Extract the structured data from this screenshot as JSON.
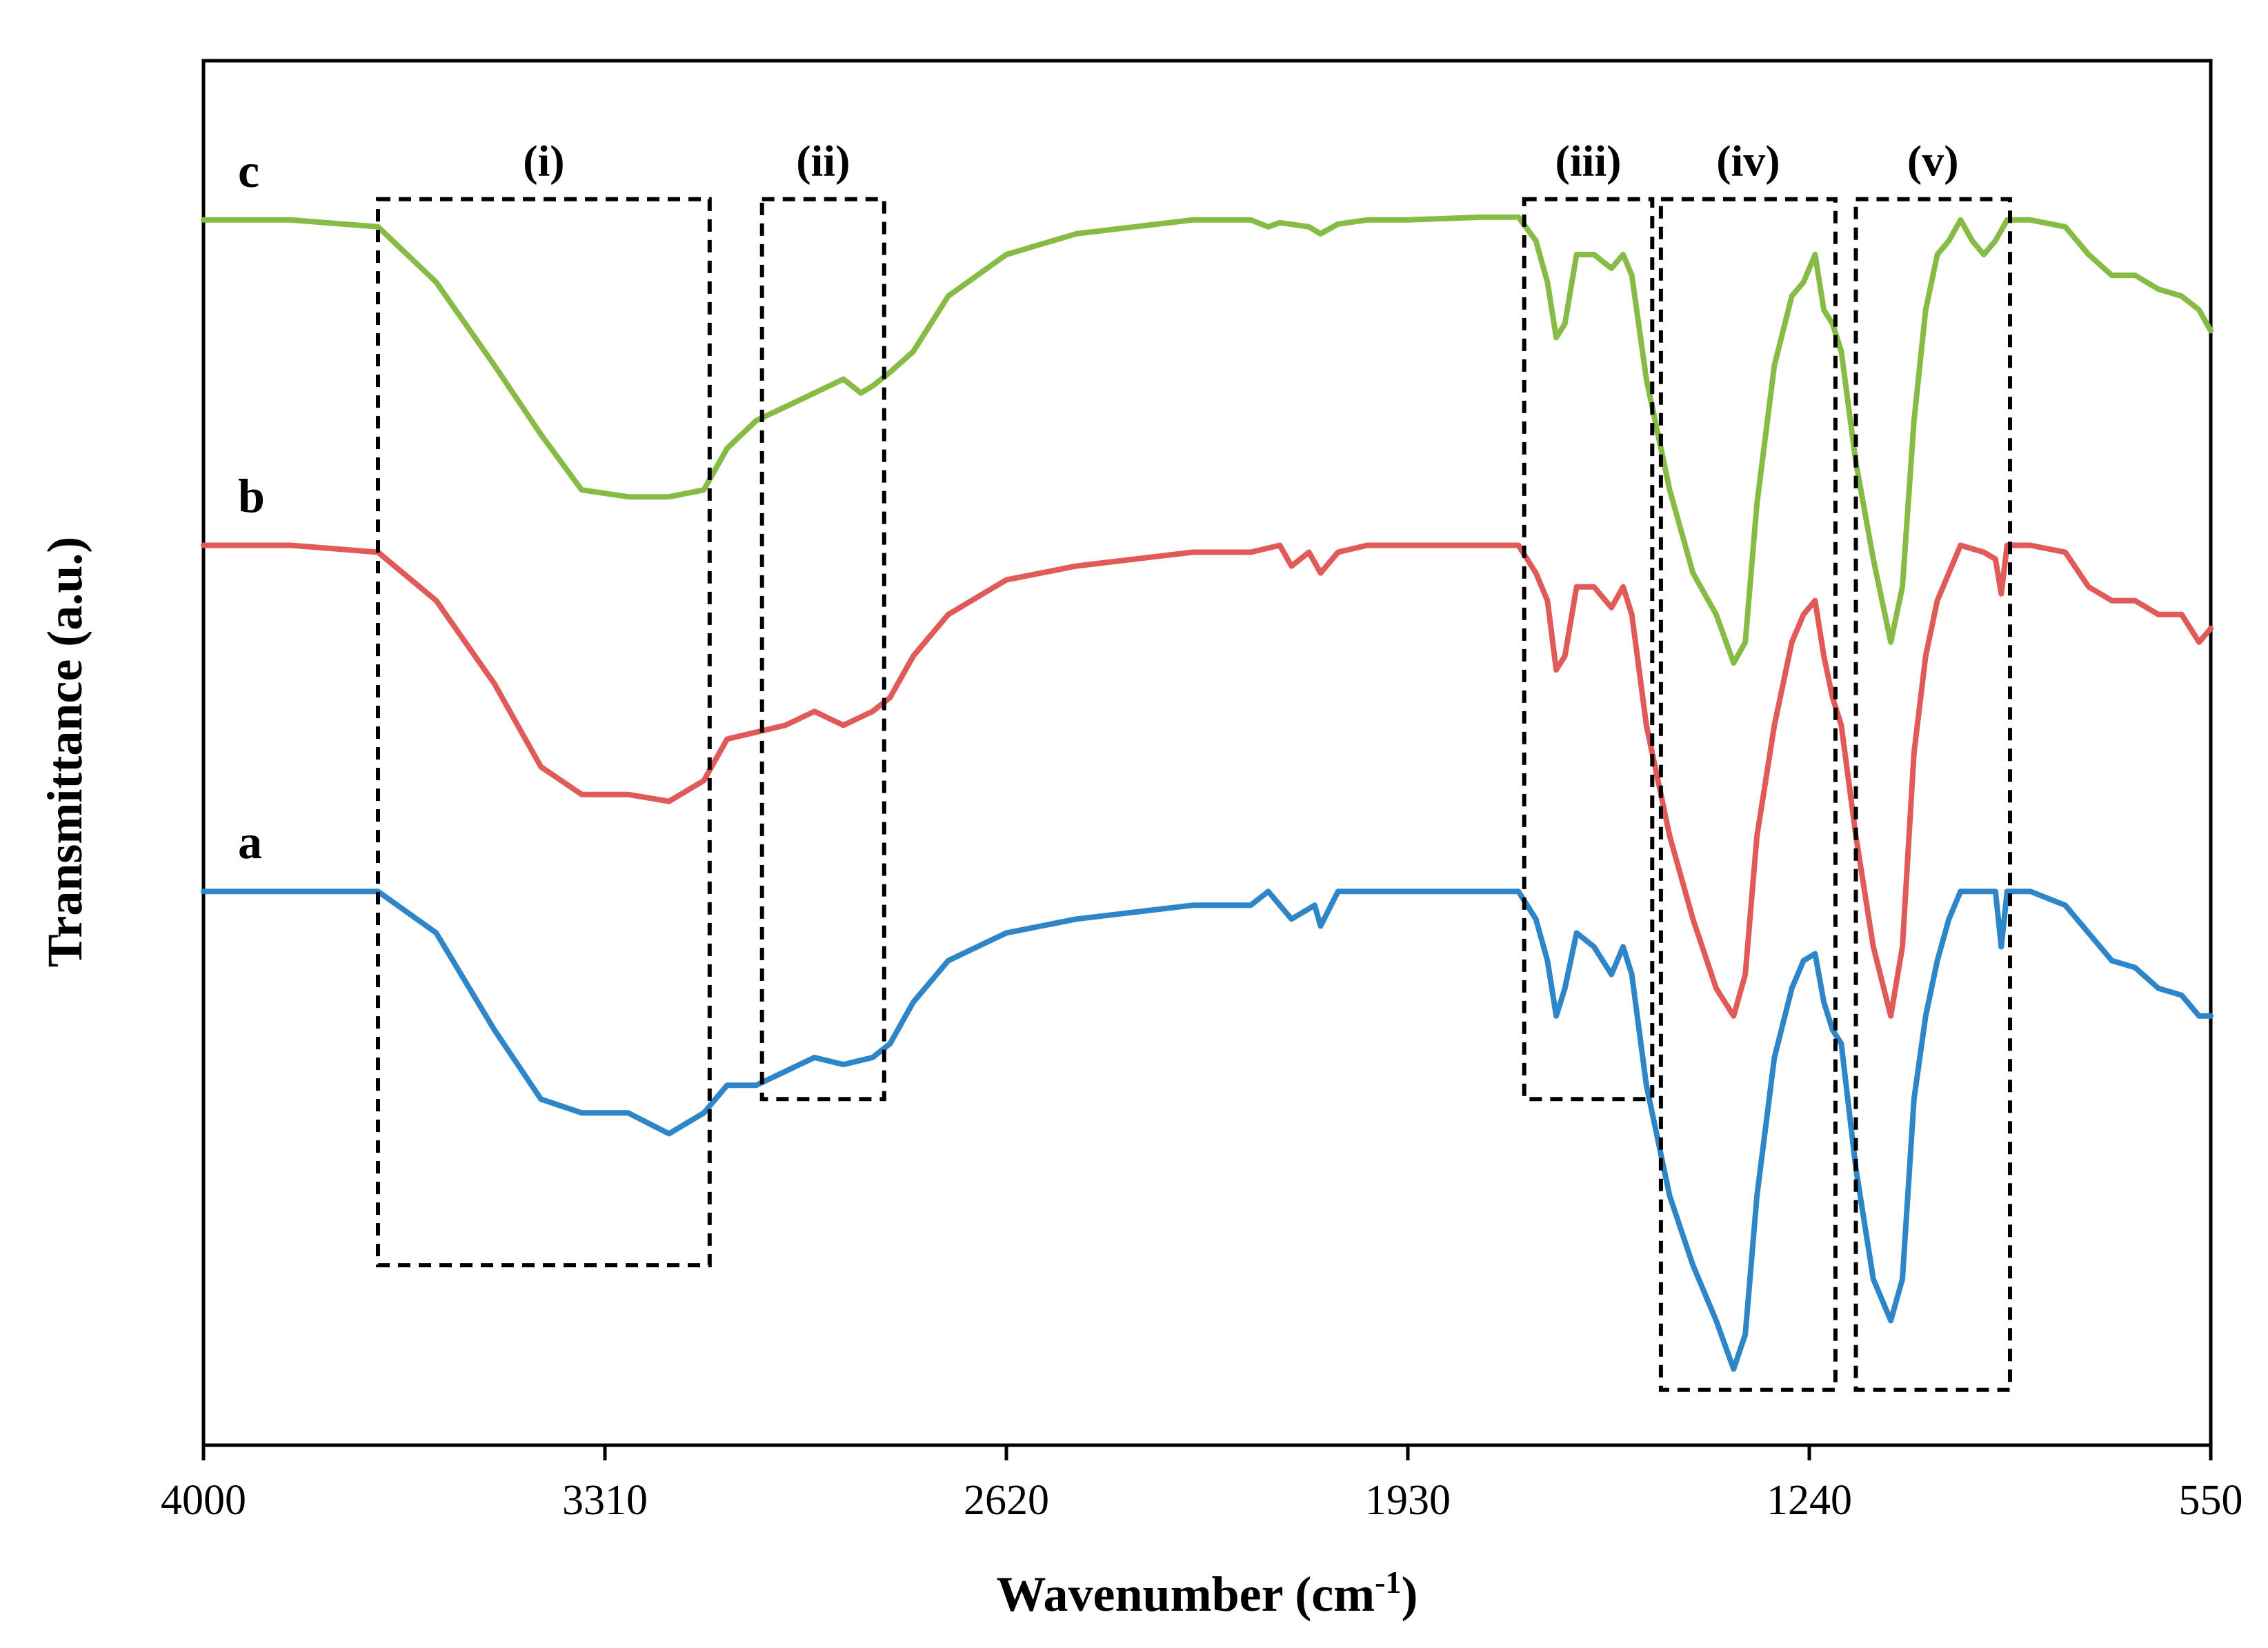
{
  "chart_data": {
    "type": "line",
    "title": "",
    "xlabel": "Wavenumber (cm",
    "xlabel_superscript": "-1",
    "xlabel_suffix": ")",
    "ylabel": "Transmittance (a.u.)",
    "xlim": [
      4000,
      550
    ],
    "ylim": [
      0,
      100
    ],
    "x_reversed": true,
    "xticks": [
      4000,
      3310,
      2620,
      1930,
      1240,
      550
    ],
    "xtick_labels": [
      "4000",
      "3310",
      "2620",
      "1930",
      "1240",
      "550"
    ],
    "yticks": [],
    "grid": false,
    "series": [
      {
        "name": "a",
        "color": "#2E86C8",
        "points": [
          [
            4000,
            40
          ],
          [
            3850,
            40
          ],
          [
            3700,
            40
          ],
          [
            3600,
            37
          ],
          [
            3500,
            30
          ],
          [
            3420,
            25
          ],
          [
            3350,
            24
          ],
          [
            3270,
            24
          ],
          [
            3200,
            22.5
          ],
          [
            3140,
            24
          ],
          [
            3100,
            26
          ],
          [
            3050,
            26
          ],
          [
            3000,
            27
          ],
          [
            2950,
            28
          ],
          [
            2900,
            27.5
          ],
          [
            2850,
            28
          ],
          [
            2820,
            29
          ],
          [
            2780,
            32
          ],
          [
            2720,
            35
          ],
          [
            2620,
            37
          ],
          [
            2500,
            38
          ],
          [
            2400,
            38.5
          ],
          [
            2300,
            39
          ],
          [
            2200,
            39
          ],
          [
            2170,
            40
          ],
          [
            2130,
            38
          ],
          [
            2090,
            39
          ],
          [
            2080,
            37.5
          ],
          [
            2050,
            40
          ],
          [
            2000,
            40
          ],
          [
            1930,
            40
          ],
          [
            1800,
            40
          ],
          [
            1740,
            40
          ],
          [
            1710,
            38
          ],
          [
            1690,
            35
          ],
          [
            1675,
            31
          ],
          [
            1660,
            33
          ],
          [
            1640,
            37
          ],
          [
            1610,
            36
          ],
          [
            1580,
            34
          ],
          [
            1560,
            36
          ],
          [
            1545,
            34
          ],
          [
            1520,
            26
          ],
          [
            1480,
            18
          ],
          [
            1440,
            13
          ],
          [
            1400,
            9
          ],
          [
            1370,
            5.5
          ],
          [
            1350,
            8
          ],
          [
            1330,
            18
          ],
          [
            1300,
            28
          ],
          [
            1270,
            33
          ],
          [
            1250,
            35
          ],
          [
            1230,
            35.5
          ],
          [
            1215,
            32
          ],
          [
            1200,
            30
          ],
          [
            1185,
            29
          ],
          [
            1160,
            20
          ],
          [
            1130,
            12
          ],
          [
            1100,
            9
          ],
          [
            1080,
            12
          ],
          [
            1060,
            25
          ],
          [
            1040,
            31
          ],
          [
            1020,
            35
          ],
          [
            1000,
            38
          ],
          [
            980,
            40
          ],
          [
            940,
            40
          ],
          [
            920,
            40
          ],
          [
            910,
            36
          ],
          [
            900,
            40
          ],
          [
            860,
            40
          ],
          [
            800,
            39
          ],
          [
            760,
            37
          ],
          [
            720,
            35
          ],
          [
            680,
            34.5
          ],
          [
            640,
            33
          ],
          [
            600,
            32.5
          ],
          [
            570,
            31
          ],
          [
            550,
            31
          ]
        ]
      },
      {
        "name": "b",
        "color": "#E05A58",
        "points": [
          [
            4000,
            65
          ],
          [
            3850,
            65
          ],
          [
            3700,
            64.5
          ],
          [
            3600,
            61
          ],
          [
            3500,
            55
          ],
          [
            3420,
            49
          ],
          [
            3350,
            47
          ],
          [
            3270,
            47
          ],
          [
            3200,
            46.5
          ],
          [
            3140,
            48
          ],
          [
            3100,
            51
          ],
          [
            3050,
            51.5
          ],
          [
            3000,
            52
          ],
          [
            2950,
            53
          ],
          [
            2900,
            52
          ],
          [
            2850,
            53
          ],
          [
            2820,
            54
          ],
          [
            2780,
            57
          ],
          [
            2720,
            60
          ],
          [
            2620,
            62.5
          ],
          [
            2500,
            63.5
          ],
          [
            2400,
            64
          ],
          [
            2300,
            64.5
          ],
          [
            2200,
            64.5
          ],
          [
            2150,
            65
          ],
          [
            2130,
            63.5
          ],
          [
            2100,
            64.5
          ],
          [
            2080,
            63
          ],
          [
            2050,
            64.5
          ],
          [
            2000,
            65
          ],
          [
            1930,
            65
          ],
          [
            1800,
            65
          ],
          [
            1740,
            65
          ],
          [
            1710,
            63
          ],
          [
            1690,
            61
          ],
          [
            1675,
            56
          ],
          [
            1660,
            57
          ],
          [
            1640,
            62
          ],
          [
            1610,
            62
          ],
          [
            1580,
            60.5
          ],
          [
            1560,
            62
          ],
          [
            1545,
            60
          ],
          [
            1520,
            52
          ],
          [
            1480,
            44
          ],
          [
            1440,
            38
          ],
          [
            1400,
            33
          ],
          [
            1370,
            31
          ],
          [
            1350,
            34
          ],
          [
            1330,
            44
          ],
          [
            1300,
            52
          ],
          [
            1270,
            58
          ],
          [
            1250,
            60
          ],
          [
            1230,
            61
          ],
          [
            1215,
            57
          ],
          [
            1200,
            54
          ],
          [
            1185,
            52
          ],
          [
            1160,
            44
          ],
          [
            1130,
            36
          ],
          [
            1100,
            31
          ],
          [
            1080,
            36
          ],
          [
            1060,
            50
          ],
          [
            1040,
            57
          ],
          [
            1020,
            61
          ],
          [
            1000,
            63
          ],
          [
            980,
            65
          ],
          [
            940,
            64.5
          ],
          [
            920,
            64
          ],
          [
            910,
            61.5
          ],
          [
            900,
            65
          ],
          [
            860,
            65
          ],
          [
            800,
            64.5
          ],
          [
            760,
            62
          ],
          [
            720,
            61
          ],
          [
            680,
            61
          ],
          [
            640,
            60
          ],
          [
            600,
            60
          ],
          [
            570,
            58
          ],
          [
            550,
            59
          ]
        ]
      },
      {
        "name": "c",
        "color": "#86BC45",
        "points": [
          [
            4000,
            88.5
          ],
          [
            3850,
            88.5
          ],
          [
            3700,
            88
          ],
          [
            3600,
            84
          ],
          [
            3500,
            78
          ],
          [
            3420,
            73
          ],
          [
            3350,
            69
          ],
          [
            3270,
            68.5
          ],
          [
            3200,
            68.5
          ],
          [
            3140,
            69
          ],
          [
            3100,
            72
          ],
          [
            3050,
            74
          ],
          [
            3000,
            75
          ],
          [
            2950,
            76
          ],
          [
            2900,
            77
          ],
          [
            2870,
            76
          ],
          [
            2850,
            76.5
          ],
          [
            2820,
            77.5
          ],
          [
            2780,
            79
          ],
          [
            2720,
            83
          ],
          [
            2620,
            86
          ],
          [
            2500,
            87.5
          ],
          [
            2400,
            88
          ],
          [
            2300,
            88.5
          ],
          [
            2200,
            88.5
          ],
          [
            2170,
            88
          ],
          [
            2150,
            88.3
          ],
          [
            2100,
            88
          ],
          [
            2080,
            87.5
          ],
          [
            2050,
            88.2
          ],
          [
            2000,
            88.5
          ],
          [
            1930,
            88.5
          ],
          [
            1800,
            88.7
          ],
          [
            1740,
            88.7
          ],
          [
            1710,
            87
          ],
          [
            1690,
            84
          ],
          [
            1675,
            80
          ],
          [
            1660,
            81
          ],
          [
            1640,
            86
          ],
          [
            1610,
            86
          ],
          [
            1580,
            85
          ],
          [
            1560,
            86
          ],
          [
            1545,
            84.5
          ],
          [
            1520,
            77
          ],
          [
            1480,
            69
          ],
          [
            1440,
            63
          ],
          [
            1400,
            60
          ],
          [
            1370,
            56.5
          ],
          [
            1350,
            58
          ],
          [
            1330,
            68
          ],
          [
            1300,
            78
          ],
          [
            1270,
            83
          ],
          [
            1250,
            84
          ],
          [
            1230,
            86
          ],
          [
            1215,
            82
          ],
          [
            1200,
            81
          ],
          [
            1185,
            79
          ],
          [
            1160,
            71
          ],
          [
            1130,
            64
          ],
          [
            1100,
            58
          ],
          [
            1080,
            62
          ],
          [
            1060,
            74
          ],
          [
            1040,
            82
          ],
          [
            1020,
            86
          ],
          [
            1000,
            87
          ],
          [
            980,
            88.5
          ],
          [
            960,
            87
          ],
          [
            940,
            86
          ],
          [
            920,
            87
          ],
          [
            900,
            88.5
          ],
          [
            860,
            88.5
          ],
          [
            800,
            88
          ],
          [
            760,
            86
          ],
          [
            720,
            84.5
          ],
          [
            680,
            84.5
          ],
          [
            640,
            83.5
          ],
          [
            600,
            83
          ],
          [
            570,
            82
          ],
          [
            550,
            80.5
          ]
        ]
      }
    ],
    "annotations": [
      {
        "label": "(i)",
        "x_range": [
          3700,
          3130
        ],
        "y_range": [
          13,
          90
        ]
      },
      {
        "label": "(ii)",
        "x_range": [
          3040,
          2830
        ],
        "y_range": [
          25,
          90
        ]
      },
      {
        "label": "(iii)",
        "x_range": [
          1730,
          1510
        ],
        "y_range": [
          25,
          90
        ]
      },
      {
        "label": "(iv)",
        "x_range": [
          1495,
          1195
        ],
        "y_range": [
          4,
          90
        ]
      },
      {
        "label": "(v)",
        "x_range": [
          1160,
          895
        ],
        "y_range": [
          4,
          90
        ]
      }
    ]
  }
}
